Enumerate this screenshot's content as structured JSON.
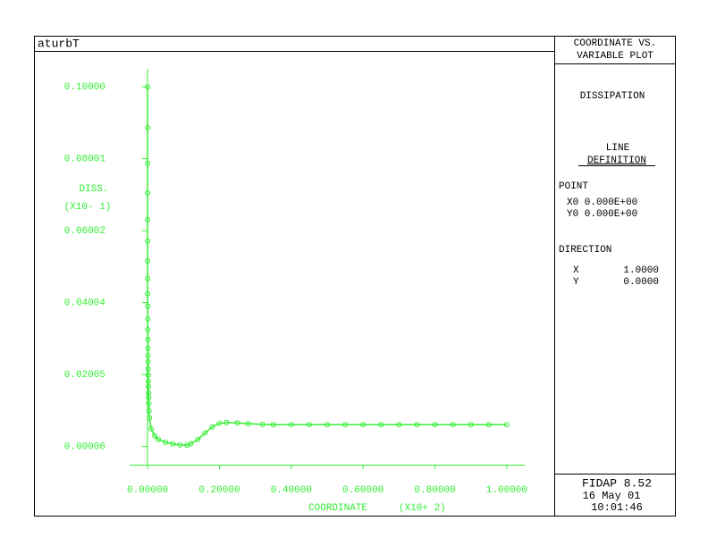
{
  "frame": {
    "plot_name": "aturbT",
    "panel_title": [
      "COORDINATE VS.",
      "VARIABLE PLOT"
    ],
    "variable": "DISSIPATION",
    "line_def": [
      "LINE",
      "DEFINITION"
    ],
    "point_label": "POINT",
    "point_rows": [
      "X0 0.000E+00",
      "Y0 0.000E+00"
    ],
    "direction_label": "DIRECTION",
    "direction_rows": [
      [
        "X",
        "1.0000"
      ],
      [
        "Y",
        "0.0000"
      ]
    ],
    "footer": [
      "FIDAP 8.52",
      "16 May 01",
      "10:01:46"
    ]
  },
  "chart_data": {
    "type": "line",
    "marker": "circle",
    "color": "#33ee33",
    "x_label": "COORDINATE",
    "x_label_scale": "(X10+ 2)",
    "y_label": "DISS.",
    "y_label_scale": "(X10- 1)",
    "x": [
      0,
      0,
      0,
      0,
      0,
      0,
      0,
      0,
      0,
      0.0005,
      0.0005,
      0.0005,
      0.001,
      0.001,
      0.001,
      0.0015,
      0.0015,
      0.002,
      0.002,
      0.0025,
      0.003,
      0.003,
      0.0035,
      0.004,
      0.005,
      0.01,
      0.02,
      0.03,
      0.05,
      0.07,
      0.09,
      0.11,
      0.12,
      0.14,
      0.16,
      0.18,
      0.2,
      0.22,
      0.25,
      0.28,
      0.32,
      0.35,
      0.4,
      0.45,
      0.5,
      0.55,
      0.6,
      0.65,
      0.7,
      0.75,
      0.8,
      0.85,
      0.9,
      0.95,
      1.0
    ],
    "values": [
      0.1,
      0.0886,
      0.0787,
      0.0705,
      0.0631,
      0.0571,
      0.0516,
      0.0467,
      0.0425,
      0.039,
      0.0355,
      0.0325,
      0.0298,
      0.0273,
      0.0253,
      0.0236,
      0.0216,
      0.0199,
      0.0182,
      0.0167,
      0.0149,
      0.0137,
      0.012,
      0.01,
      0.008,
      0.005,
      0.003,
      0.002,
      0.0012,
      0.0008,
      0.0005,
      0.0004,
      0.0008,
      0.002,
      0.0038,
      0.0055,
      0.0065,
      0.0067,
      0.0066,
      0.0064,
      0.0062,
      0.0061,
      0.0061,
      0.0061,
      0.0061,
      0.0061,
      0.0061,
      0.0061,
      0.0061,
      0.0061,
      0.0061,
      0.0061,
      0.0061,
      0.0061,
      0.0061
    ],
    "xlim": [
      -0.05,
      1.05
    ],
    "ylim": [
      -0.005,
      0.105
    ],
    "xticks": [
      {
        "value": 0,
        "label": "0.00000"
      },
      {
        "value": 0.2,
        "label": "0.20000"
      },
      {
        "value": 0.4,
        "label": "0.40000"
      },
      {
        "value": 0.6,
        "label": "0.60000"
      },
      {
        "value": 0.8,
        "label": "0.80000"
      },
      {
        "value": 1.0,
        "label": "1.00000"
      }
    ],
    "yticks": [
      6e-05,
      0.02005,
      0.04004,
      0.06002,
      0.08001,
      {
        "value": 0.1,
        "label": "0.10000"
      }
    ]
  }
}
